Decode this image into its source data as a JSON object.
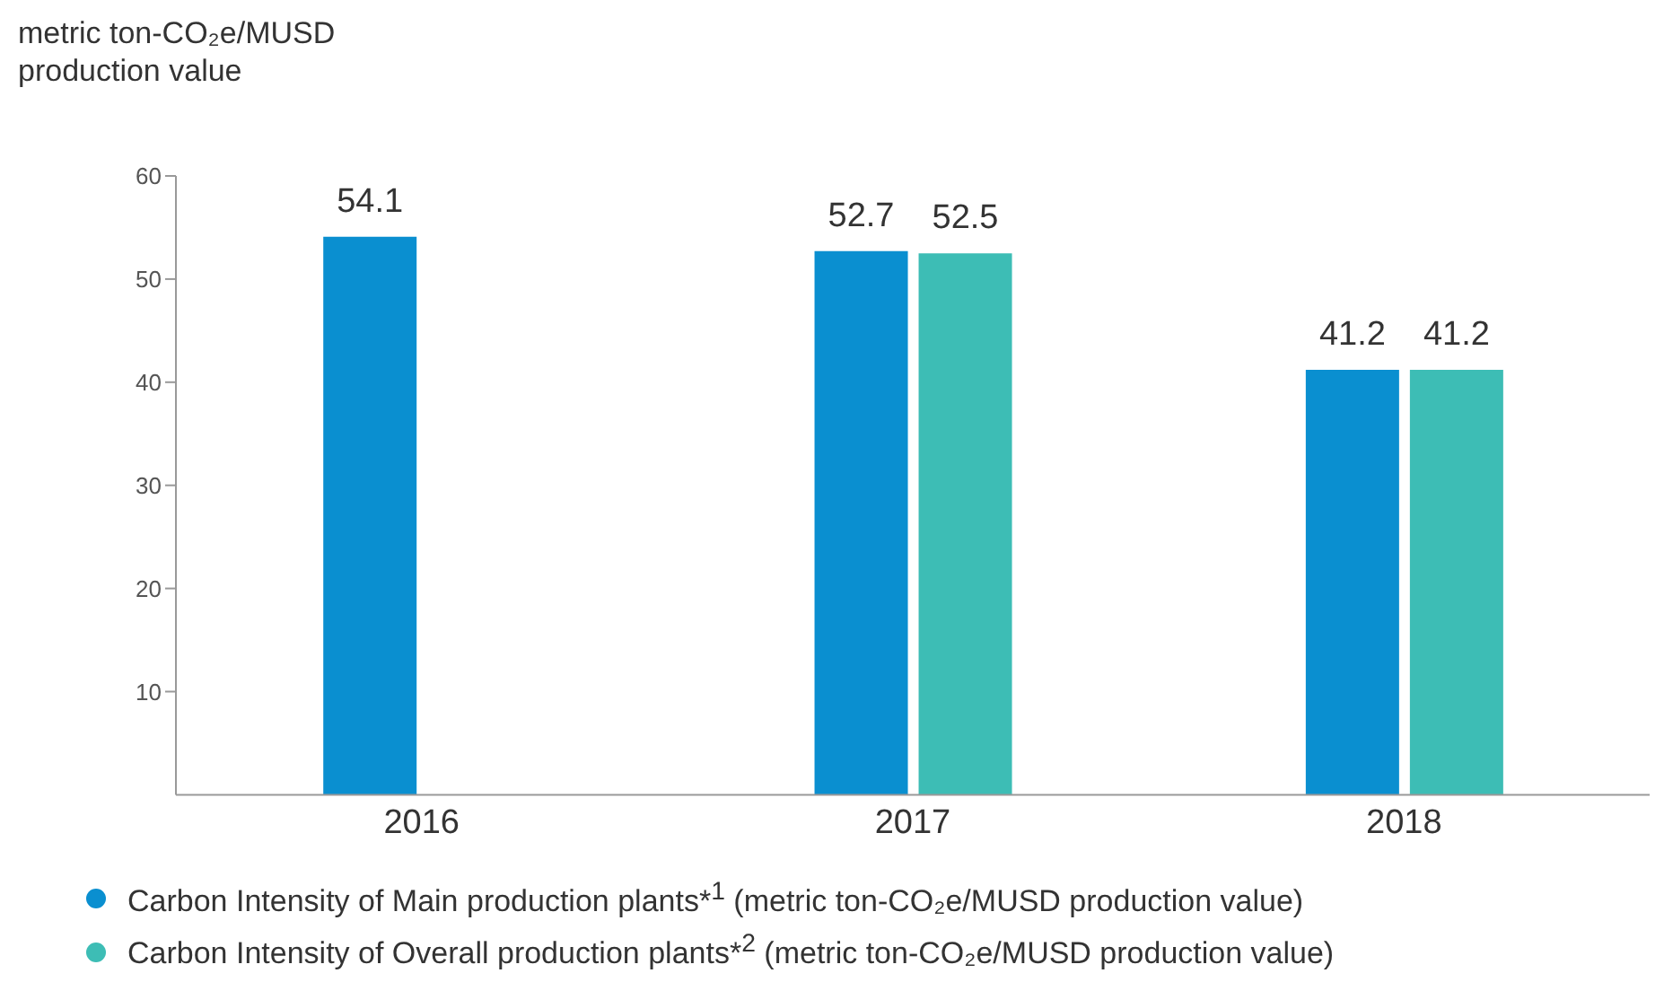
{
  "chart_data": {
    "type": "bar",
    "ylabel": "metric ton-CO₂e/MUSD production value",
    "categories": [
      "2016",
      "2017",
      "2018"
    ],
    "series": [
      {
        "name": "Carbon Intensity of Main production plants*$^{1}$ (metric ton-CO₂e/MUSD production value)",
        "color": "#0a8fd0",
        "values": [
          54.1,
          52.7,
          41.2
        ]
      },
      {
        "name": "Carbon Intensity of Overall production plants*$^{2}$ (metric ton-CO₂e/MUSD production value)",
        "color": "#3dbdb5",
        "values": [
          null,
          52.5,
          41.2
        ]
      }
    ],
    "ylim": [
      0,
      60
    ],
    "yticks": [
      10,
      20,
      30,
      40,
      50,
      60
    ],
    "data_labels": true,
    "grid": false,
    "legend": "bottom"
  }
}
